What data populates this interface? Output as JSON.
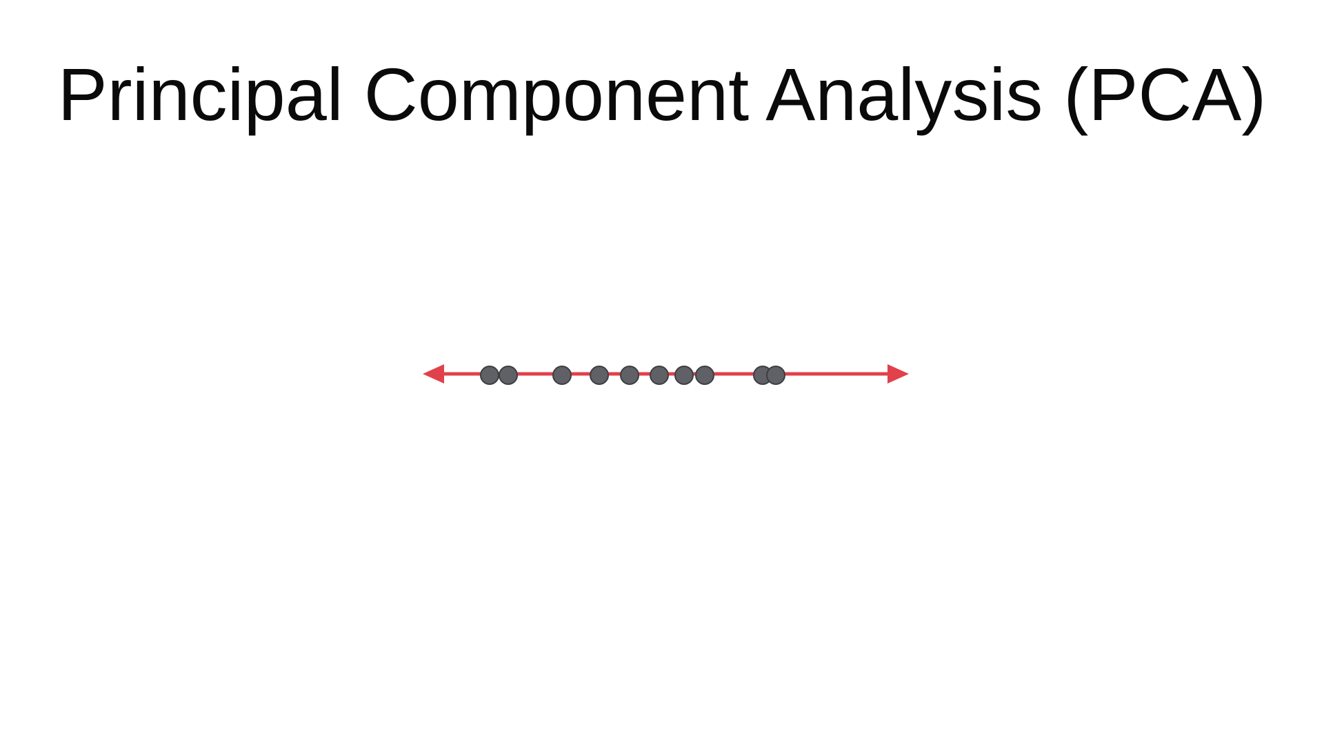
{
  "slide": {
    "title": "Principal Component Analysis (PCA)"
  },
  "diagram": {
    "axis_color": "#e0414b",
    "point_fill": "#5f6166",
    "point_stroke": "#3c3e42",
    "points": [
      -2.55,
      -2.28,
      -1.5,
      -0.96,
      -0.52,
      -0.09,
      0.27,
      0.57,
      1.41,
      1.6
    ]
  }
}
